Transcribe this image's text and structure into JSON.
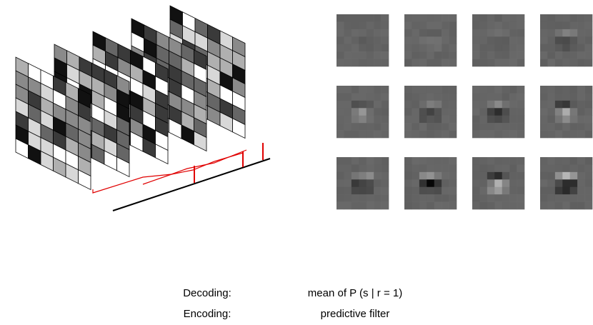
{
  "rows": [
    {
      "label": "Decoding:",
      "text": "mean of P (s | r = 1)"
    },
    {
      "label": "Encoding:",
      "text": "predictive filter"
    }
  ]
}
